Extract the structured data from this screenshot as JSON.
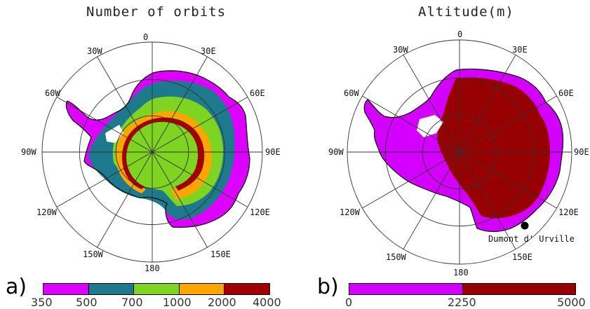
{
  "panel_a": {
    "title": "Number of orbits",
    "letter": "a)",
    "longitudes": [
      "0",
      "30E",
      "60E",
      "90E",
      "120E",
      "150E",
      "180",
      "150W",
      "120W",
      "90W",
      "60W",
      "30W"
    ],
    "colorbar": {
      "ticks": [
        "350",
        "500",
        "700",
        "1000",
        "2000",
        "4000"
      ],
      "colors": [
        "#dd00ff",
        "#1c7a8c",
        "#7fd321",
        "#ffa500",
        "#a00000"
      ]
    }
  },
  "panel_b": {
    "title": "Altitude(m)",
    "letter": "b)",
    "longitudes": [
      "0",
      "30E",
      "60E",
      "90E",
      "120E",
      "150E",
      "180",
      "150W",
      "120W",
      "90W",
      "60W",
      "30W"
    ],
    "station": "Dumont d' Urville",
    "colorbar": {
      "ticks": [
        "0",
        "2250",
        "5000"
      ],
      "colors": [
        "#d400ff",
        "#960000"
      ]
    }
  }
}
